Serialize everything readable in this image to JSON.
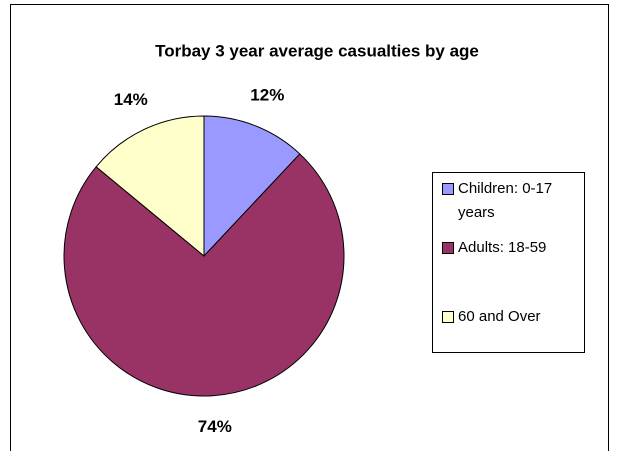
{
  "chart_data": {
    "type": "pie",
    "title": "Torbay 3 year average casualties by age",
    "categories": [
      "Children: 0-17 years",
      "Adults: 18-59",
      "60 and Over"
    ],
    "values": [
      12,
      74,
      14
    ],
    "value_labels": [
      "12%",
      "74%",
      "14%"
    ],
    "colors": [
      "#9999ff",
      "#993366",
      "#ffffcc"
    ],
    "legend": "right"
  }
}
